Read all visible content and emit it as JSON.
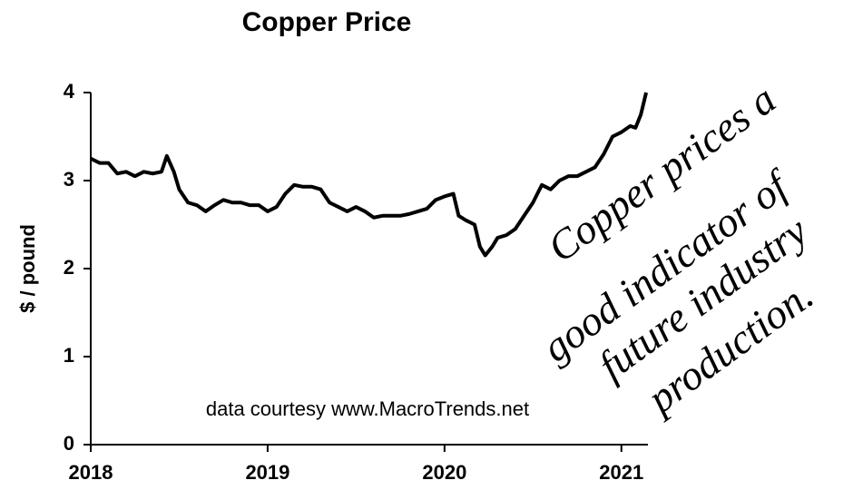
{
  "chart_data": {
    "type": "line",
    "title": "Copper Price",
    "y_label": "$ / pound",
    "source": "data courtesy www.MacroTrends.net",
    "annotation": [
      "Copper prices a",
      "good indicator of",
      "future industry",
      "production."
    ],
    "xlim": [
      2018,
      2021.15
    ],
    "xticks": [
      2018,
      2019,
      2020,
      2021
    ],
    "ylim": [
      0,
      4
    ],
    "yticks": [
      0,
      1,
      2,
      3,
      4
    ],
    "series": [
      {
        "color": "#000000",
        "x": [
          2018.0,
          2018.05,
          2018.1,
          2018.15,
          2018.2,
          2018.25,
          2018.3,
          2018.35,
          2018.4,
          2018.43,
          2018.47,
          2018.5,
          2018.55,
          2018.6,
          2018.65,
          2018.7,
          2018.75,
          2018.8,
          2018.85,
          2018.9,
          2018.95,
          2019.0,
          2019.05,
          2019.1,
          2019.15,
          2019.2,
          2019.25,
          2019.3,
          2019.35,
          2019.4,
          2019.45,
          2019.5,
          2019.55,
          2019.6,
          2019.65,
          2019.7,
          2019.75,
          2019.8,
          2019.85,
          2019.9,
          2019.95,
          2020.0,
          2020.05,
          2020.08,
          2020.12,
          2020.17,
          2020.2,
          2020.23,
          2020.27,
          2020.3,
          2020.35,
          2020.4,
          2020.45,
          2020.5,
          2020.55,
          2020.6,
          2020.65,
          2020.7,
          2020.75,
          2020.8,
          2020.85,
          2020.9,
          2020.95,
          2021.0,
          2021.05,
          2021.08,
          2021.11,
          2021.14
        ],
        "values": [
          3.25,
          3.2,
          3.2,
          3.08,
          3.1,
          3.05,
          3.1,
          3.08,
          3.1,
          3.28,
          3.1,
          2.9,
          2.75,
          2.72,
          2.65,
          2.72,
          2.78,
          2.75,
          2.75,
          2.72,
          2.72,
          2.65,
          2.7,
          2.85,
          2.95,
          2.93,
          2.93,
          2.9,
          2.75,
          2.7,
          2.65,
          2.7,
          2.65,
          2.58,
          2.6,
          2.6,
          2.6,
          2.62,
          2.65,
          2.68,
          2.78,
          2.82,
          2.85,
          2.6,
          2.55,
          2.5,
          2.25,
          2.15,
          2.25,
          2.35,
          2.38,
          2.45,
          2.6,
          2.75,
          2.95,
          2.9,
          3.0,
          3.05,
          3.05,
          3.1,
          3.15,
          3.3,
          3.5,
          3.55,
          3.62,
          3.6,
          3.75,
          4.0
        ]
      }
    ]
  }
}
